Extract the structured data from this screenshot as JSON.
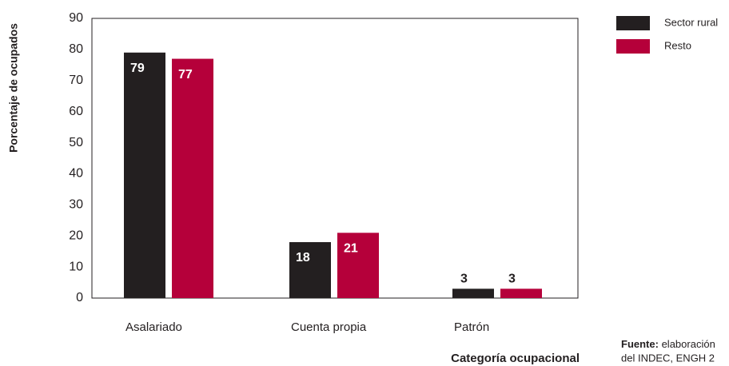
{
  "chart_data": {
    "type": "bar",
    "y_axis_label": "Porcentaje de ocupados",
    "x_axis_label": "Categoría ocupacional",
    "categories": [
      "Asalariado",
      "Cuenta propia",
      "Patrón"
    ],
    "series": [
      {
        "name": "Sector rural",
        "color": "#231f20",
        "values": [
          79,
          18,
          3
        ]
      },
      {
        "name": "Resto",
        "color": "#b5003a",
        "values": [
          77,
          21,
          3
        ]
      }
    ],
    "ylim": [
      0,
      90
    ],
    "yticks": [
      0,
      10,
      20,
      30,
      40,
      50,
      60,
      70,
      80,
      90
    ],
    "source": {
      "label": "Fuente:",
      "lines": [
        "elaboración",
        "del INDEC, ENGH 2"
      ]
    }
  }
}
